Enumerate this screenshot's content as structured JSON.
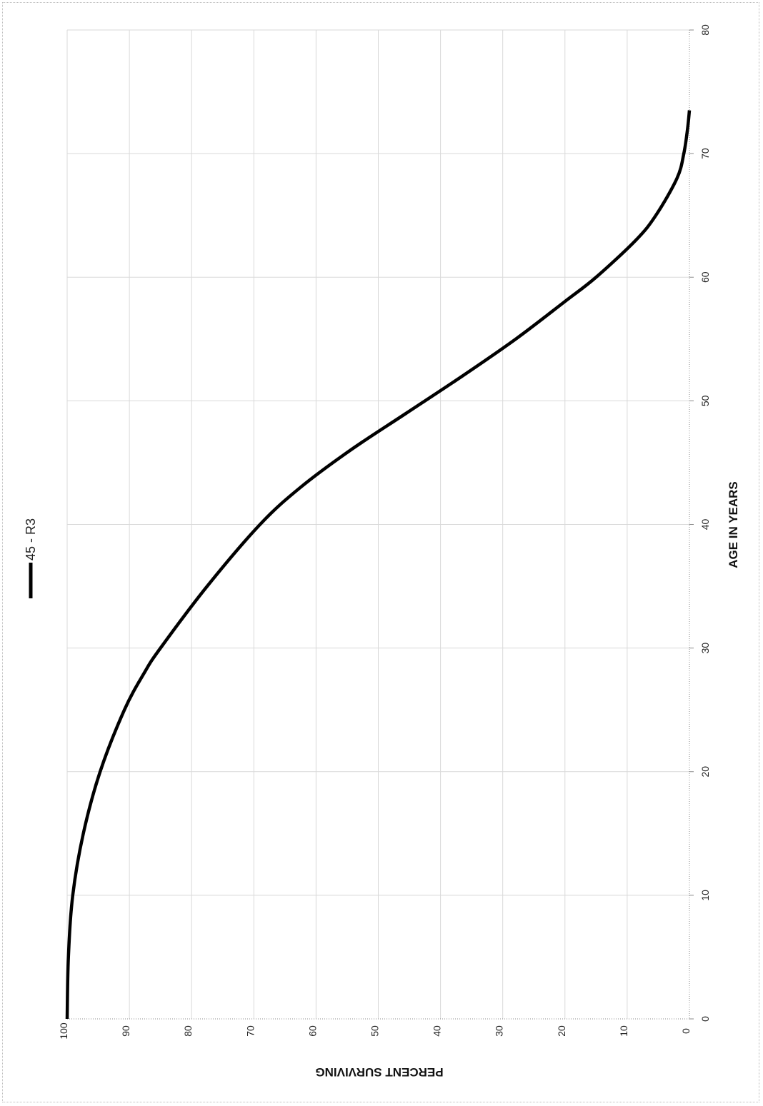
{
  "chart_data": {
    "type": "line",
    "orientation": "rotated 90° clockwise",
    "xlabel": "AGE IN YEARS",
    "ylabel": "PERCENT SURVIVING",
    "xlim": [
      0,
      80
    ],
    "ylim": [
      0,
      100
    ],
    "x_ticks": [
      "0",
      "10",
      "20",
      "30",
      "40",
      "50",
      "60",
      "70",
      "80"
    ],
    "y_ticks": [
      "0",
      "10",
      "20",
      "30",
      "40",
      "50",
      "60",
      "70",
      "80",
      "90",
      "100"
    ],
    "grid": true,
    "legend": "top",
    "series": [
      {
        "name": "45 - R3",
        "color": "#000000",
        "x": [
          0,
          5,
          10,
          15,
          20,
          25,
          28,
          30,
          35,
          40,
          43,
          46,
          49,
          52,
          55,
          58,
          60,
          63,
          65,
          68,
          70,
          72,
          73.5
        ],
        "y": [
          100,
          99.8,
          99.1,
          97.4,
          94.7,
          90.8,
          87.6,
          85.0,
          77.5,
          69.0,
          62.5,
          54.5,
          45.5,
          36.5,
          27.9,
          20.1,
          15.0,
          8.6,
          5.4,
          2.0,
          0.9,
          0.3,
          0
        ]
      }
    ]
  }
}
